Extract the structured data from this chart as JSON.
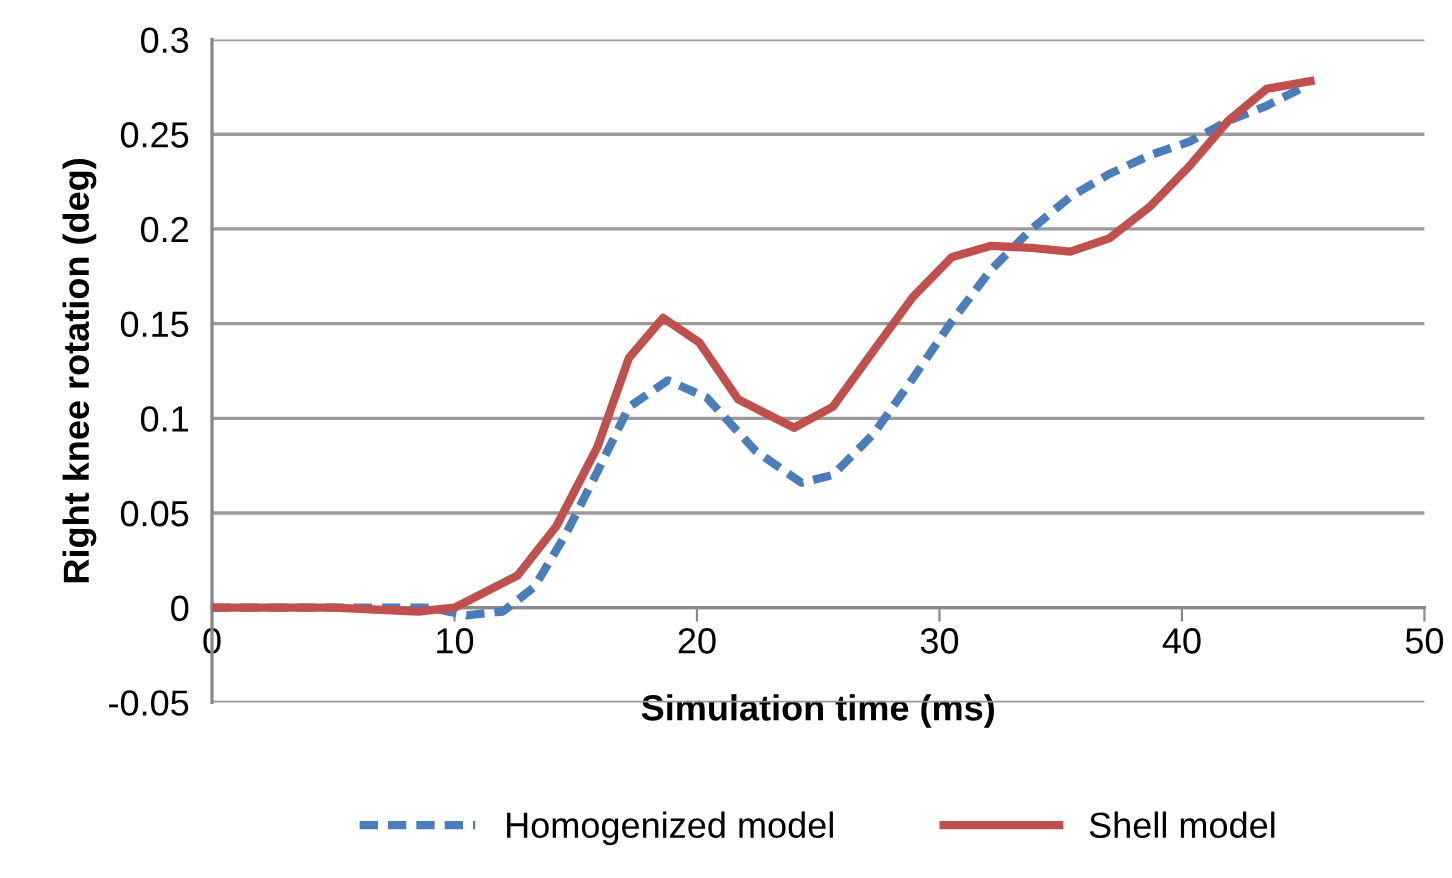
{
  "chart_data": {
    "type": "line",
    "xlabel": "Simulation time (ms)",
    "ylabel": "Right knee rotation (deg)",
    "xlim": [
      0,
      50
    ],
    "xticks": [
      0,
      10,
      20,
      30,
      40,
      50
    ],
    "ylim": [
      -0.05,
      0.3
    ],
    "yticks": [
      -0.05,
      0,
      0.05,
      0.1,
      0.15,
      0.2,
      0.25,
      0.3
    ],
    "grid": "y",
    "legend": "bottom",
    "marker": "none",
    "series": [
      {
        "name": "Homogenized model",
        "color": "#4a7ebb",
        "line_style": "dashed",
        "x": [
          0,
          5,
          9,
          10.5,
          12,
          13.3,
          14.6,
          15.9,
          17.2,
          18.8,
          20.4,
          22.4,
          24.3,
          25.6,
          27.3,
          28.9,
          30.5,
          32.1,
          33.8,
          35.4,
          37,
          38.7,
          40.3,
          41.9,
          43.5,
          45.2
        ],
        "values": [
          0,
          0,
          0,
          -0.004,
          -0.002,
          0.011,
          0.039,
          0.072,
          0.106,
          0.12,
          0.111,
          0.083,
          0.066,
          0.07,
          0.092,
          0.121,
          0.151,
          0.178,
          0.2,
          0.217,
          0.229,
          0.239,
          0.246,
          0.257,
          0.265,
          0.276
        ]
      },
      {
        "name": "Shell model",
        "color": "#c0504d",
        "line_style": "solid",
        "x": [
          0,
          5,
          8.5,
          10,
          12.6,
          14.2,
          15.9,
          17.2,
          18.6,
          20.1,
          21.7,
          24,
          25.6,
          27.3,
          28.9,
          30.5,
          32.1,
          33.8,
          35.4,
          37,
          38.7,
          40.3,
          41.9,
          43.5,
          45.3
        ],
        "values": [
          0,
          0,
          -0.002,
          0,
          0.017,
          0.043,
          0.085,
          0.132,
          0.153,
          0.14,
          0.11,
          0.095,
          0.106,
          0.136,
          0.164,
          0.185,
          0.191,
          0.19,
          0.188,
          0.195,
          0.212,
          0.233,
          0.257,
          0.274,
          0.278
        ]
      }
    ]
  }
}
